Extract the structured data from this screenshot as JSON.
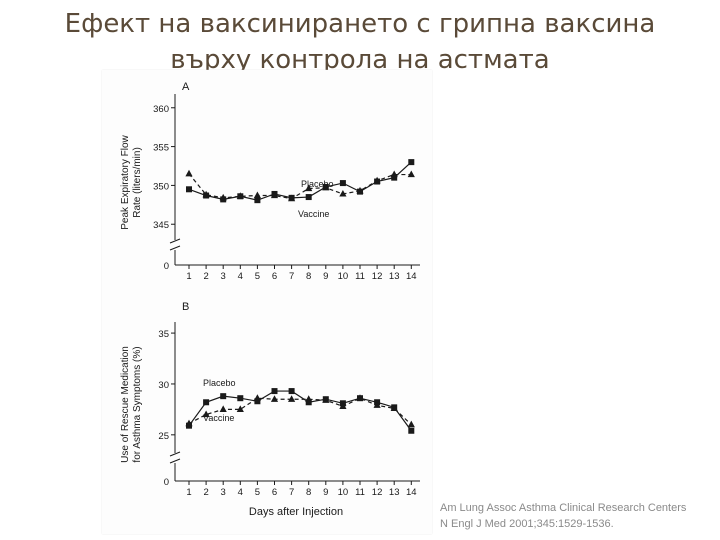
{
  "slide": {
    "title_line1": "Ефект на ваксинирането с грипна ваксина",
    "title_line2": "върху контрола на астмата"
  },
  "citation": {
    "line1": "Am Lung Assoc Asthma Clinical Research Centers",
    "line2": "N Engl J Med 2001;345:1529-1536."
  },
  "colors": {
    "title": "#5a4a38",
    "series": "#1a1a1a"
  },
  "chart_data": [
    {
      "type": "line",
      "panel_label": "A",
      "ylabel_line1": "Peak Expiratory Flow",
      "ylabel_line2": "Rate (liters/min)",
      "xlabel": "",
      "x": [
        1,
        2,
        3,
        4,
        5,
        6,
        7,
        8,
        9,
        10,
        11,
        12,
        13,
        14
      ],
      "x_ticks": [
        "1",
        "2",
        "3",
        "4",
        "5",
        "6",
        "7",
        "8",
        "9",
        "10",
        "11",
        "12",
        "13",
        "14"
      ],
      "y_ticks": [
        345,
        350,
        355,
        360
      ],
      "y_zero": "0",
      "ylim": [
        344,
        361
      ],
      "axis_break": true,
      "series": [
        {
          "name": "Placebo",
          "marker": "square",
          "dash": "solid",
          "values": [
            349.5,
            348.7,
            348.2,
            348.6,
            348.1,
            348.9,
            348.4,
            348.5,
            349.8,
            350.3,
            349.2,
            350.5,
            351.0,
            353.0
          ]
        },
        {
          "name": "Vaccine",
          "marker": "triangle",
          "dash": "dashed",
          "values": [
            351.5,
            348.8,
            348.4,
            348.6,
            348.7,
            348.7,
            348.3,
            349.6,
            349.7,
            348.9,
            349.3,
            350.6,
            351.4,
            351.4
          ]
        }
      ],
      "legend_labels": {
        "Placebo": "Placebo",
        "Vaccine": "Vaccine"
      }
    },
    {
      "type": "line",
      "panel_label": "B",
      "ylabel_line1": "Use of Rescue Medication",
      "ylabel_line2": "for Asthma Symptoms (%)",
      "xlabel": "Days after Injection",
      "x": [
        1,
        2,
        3,
        4,
        5,
        6,
        7,
        8,
        9,
        10,
        11,
        12,
        13,
        14
      ],
      "x_ticks": [
        "1",
        "2",
        "3",
        "4",
        "5",
        "6",
        "7",
        "8",
        "9",
        "10",
        "11",
        "12",
        "13",
        "14"
      ],
      "y_ticks": [
        25,
        30,
        35
      ],
      "y_zero": "0",
      "ylim": [
        24,
        35.5
      ],
      "axis_break": true,
      "series": [
        {
          "name": "Placebo",
          "marker": "square",
          "dash": "solid",
          "values": [
            25.9,
            28.2,
            28.8,
            28.6,
            28.3,
            29.3,
            29.3,
            28.2,
            28.5,
            28.1,
            28.6,
            28.2,
            27.7,
            25.4
          ]
        },
        {
          "name": "Vaccine",
          "marker": "triangle",
          "dash": "dashed",
          "values": [
            26.1,
            27.0,
            27.5,
            27.5,
            28.6,
            28.5,
            28.5,
            28.5,
            28.4,
            27.8,
            28.6,
            27.9,
            27.6,
            26.0
          ]
        }
      ],
      "legend_labels": {
        "Placebo": "Placebo",
        "Vaccine": "Vaccine"
      }
    }
  ]
}
